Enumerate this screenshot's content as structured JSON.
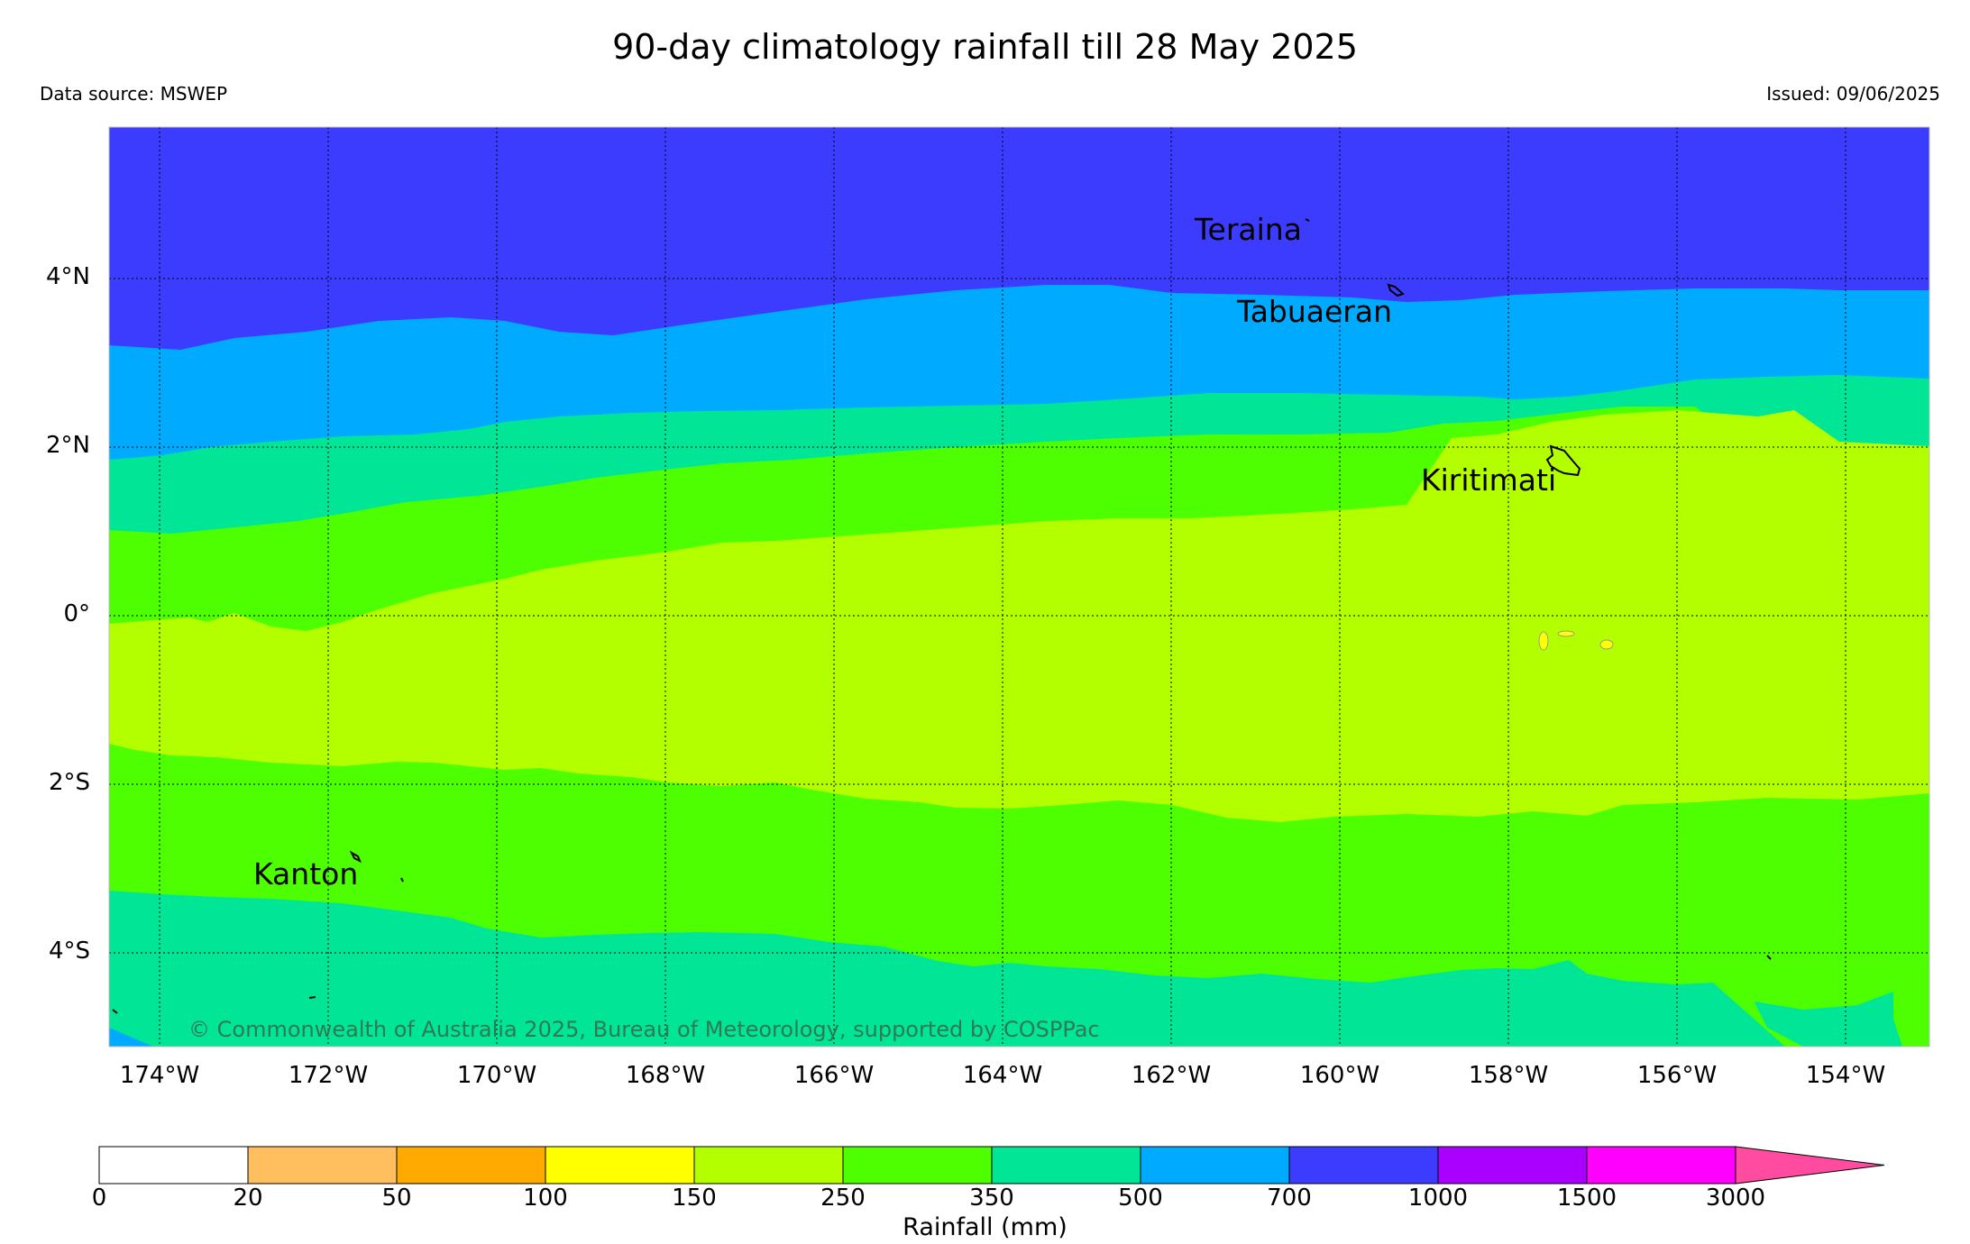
{
  "header": {
    "title": "90-day climatology rainfall till 28 May 2025",
    "source": "Data source: MSWEP",
    "issued": "Issued: 09/06/2025"
  },
  "map": {
    "copyright": "© Commonwealth of Australia 2025, Bureau of Meteorology, supported by COSPPac",
    "lat_labels": [
      "4°N",
      "2°N",
      "0°",
      "2°S",
      "4°S"
    ],
    "lon_labels": [
      "174°W",
      "172°W",
      "170°W",
      "168°W",
      "166°W",
      "164°W",
      "162°W",
      "160°W",
      "158°W",
      "156°W",
      "154°W"
    ],
    "islands": [
      "Teraina",
      "Tabuaeran",
      "Kiritimati",
      "Kanton"
    ]
  },
  "colorbar": {
    "label": "Rainfall (mm)",
    "ticks": [
      "0",
      "20",
      "50",
      "100",
      "150",
      "250",
      "350",
      "500",
      "700",
      "1000",
      "1500",
      "3000"
    ],
    "colors": [
      "#ffffff",
      "#ffbf5f",
      "#ffaa00",
      "#ffff00",
      "#b3ff00",
      "#4dff00",
      "#00e696",
      "#00aaff",
      "#3c3cff",
      "#aa00ff",
      "#ff00ff",
      "#ff4ca0"
    ]
  }
}
